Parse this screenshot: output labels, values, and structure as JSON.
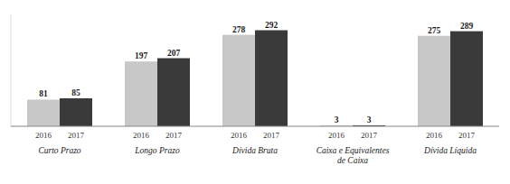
{
  "chart_data": {
    "type": "bar",
    "categories": [
      "Curto Prazo",
      "Longo Prazo",
      "Dívida Bruta",
      "Caixa e Equivalentes\nde Caixa",
      "Dívida Líquida"
    ],
    "series": [
      {
        "name": "2016",
        "color": "#c8c8c8",
        "values": [
          81,
          197,
          278,
          3,
          275
        ]
      },
      {
        "name": "2017",
        "color": "#3a3a3a",
        "values": [
          85,
          207,
          292,
          3,
          289
        ]
      }
    ],
    "ylim": [
      0,
      340
    ],
    "data_labels": true,
    "tick_labels": false,
    "grid": false
  }
}
